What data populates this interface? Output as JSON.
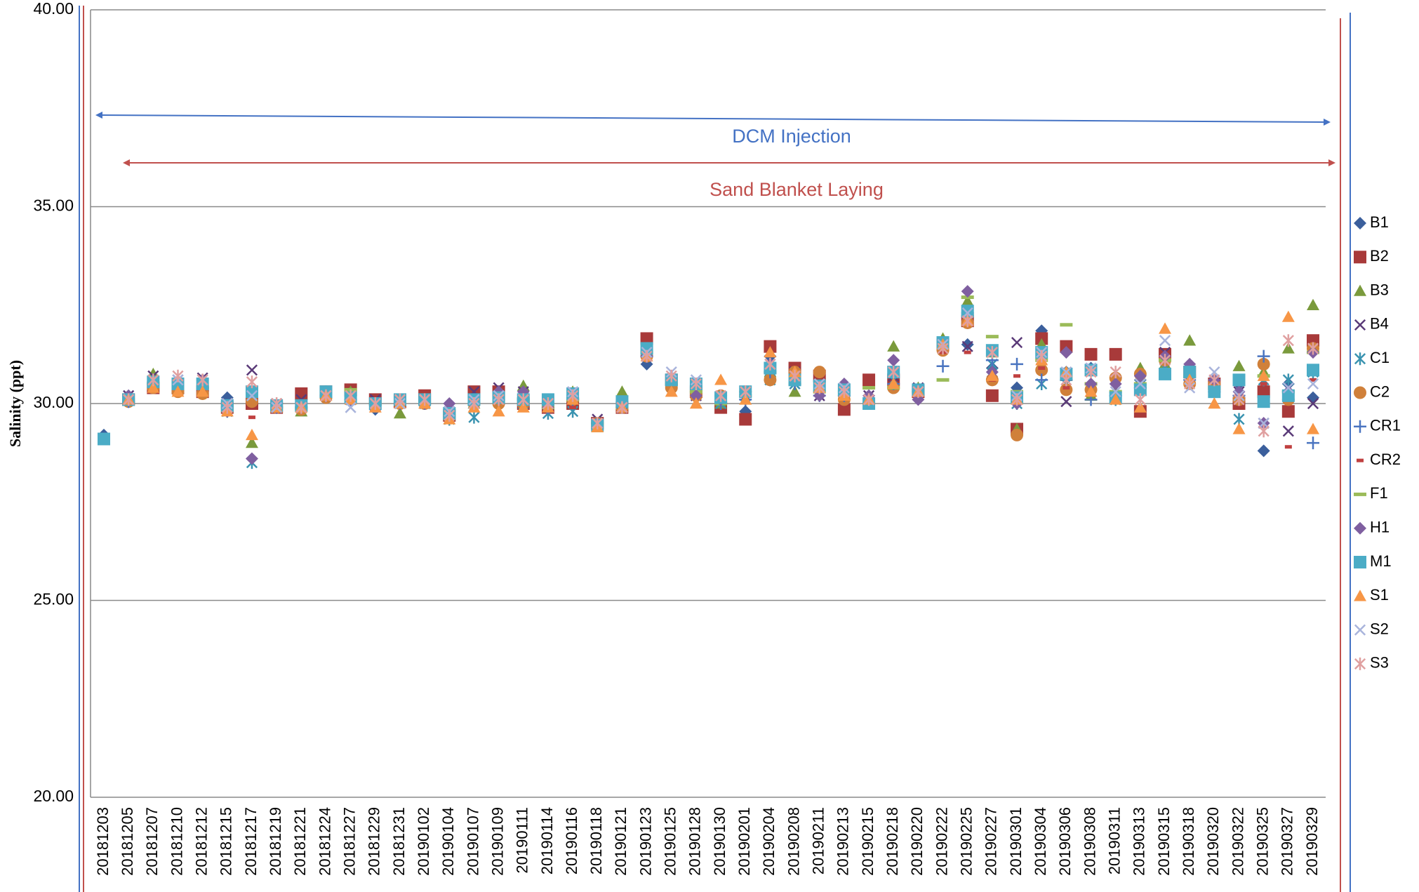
{
  "chart_data": {
    "type": "scatter",
    "y_label": "Salinity (ppt)",
    "ylim": [
      20,
      40
    ],
    "yticks": [
      {
        "value": 20,
        "label": "20.00"
      },
      {
        "value": 25,
        "label": "25.00"
      },
      {
        "value": 30,
        "label": "30.00"
      },
      {
        "value": 35,
        "label": "35.00"
      },
      {
        "value": 40,
        "label": "40.00"
      }
    ],
    "grid": true,
    "legend": "right",
    "annotations": [
      "DCM Injection",
      "Sand Blanket Laying"
    ],
    "categories": [
      "20181203",
      "20181205",
      "20181207",
      "20181210",
      "20181212",
      "20181215",
      "20181217",
      "20181219",
      "20181221",
      "20181224",
      "20181227",
      "20181229",
      "20181231",
      "20190102",
      "20190104",
      "20190107",
      "20190109",
      "20190111",
      "20190114",
      "20190116",
      "20190118",
      "20190121",
      "20190123",
      "20190125",
      "20190128",
      "20190130",
      "20190201",
      "20190204",
      "20190208",
      "20190211",
      "20190213",
      "20190215",
      "20190218",
      "20190220",
      "20190222",
      "20190225",
      "20190227",
      "20190301",
      "20190304",
      "20190306",
      "20190308",
      "20190311",
      "20190313",
      "20190315",
      "20190318",
      "20190320",
      "20190322",
      "20190325",
      "20190327",
      "20190329"
    ],
    "series": [
      {
        "name": "B1",
        "color": "#3b5f9c",
        "marker": "diamond",
        "values": [
          29.2,
          30.1,
          30.5,
          30.5,
          30.6,
          30.15,
          30.3,
          29.9,
          29.9,
          30.3,
          30.2,
          29.85,
          30.0,
          30.05,
          29.8,
          30.1,
          30.2,
          30.2,
          29.9,
          30.2,
          29.5,
          29.9,
          31.0,
          30.6,
          30.4,
          29.9,
          29.8,
          31.2,
          30.7,
          30.3,
          30.3,
          30.1,
          30.7,
          30.3,
          31.6,
          31.5,
          30.9,
          30.4,
          31.85,
          30.8,
          30.9,
          30.2,
          30.6,
          31.1,
          30.9,
          30.6,
          30.5,
          28.8,
          30.5,
          30.15
        ]
      },
      {
        "name": "B2",
        "color": "#a83a3a",
        "marker": "square",
        "values": [
          null,
          30.1,
          30.4,
          30.4,
          30.3,
          29.9,
          30.0,
          29.9,
          30.25,
          30.3,
          30.35,
          30.1,
          30.05,
          30.2,
          29.7,
          30.3,
          30.3,
          30.0,
          29.9,
          30.0,
          29.5,
          29.9,
          31.65,
          30.6,
          30.3,
          29.9,
          29.6,
          31.45,
          30.9,
          30.7,
          29.85,
          30.6,
          30.6,
          30.3,
          31.5,
          32.1,
          30.2,
          29.35,
          31.65,
          31.45,
          31.25,
          31.25,
          29.8,
          31.25,
          30.8,
          30.5,
          30.0,
          30.3,
          29.8,
          31.6
        ]
      },
      {
        "name": "B3",
        "color": "#7a9a3c",
        "marker": "triangle",
        "values": [
          null,
          30.1,
          30.75,
          30.4,
          30.5,
          29.9,
          29.0,
          29.9,
          29.8,
          30.2,
          30.3,
          30.0,
          29.75,
          30.1,
          29.7,
          30.0,
          30.2,
          30.45,
          30.0,
          30.3,
          29.4,
          30.3,
          31.3,
          30.6,
          30.4,
          30.0,
          30.3,
          30.8,
          30.3,
          30.4,
          30.3,
          30.1,
          31.45,
          30.4,
          31.65,
          32.6,
          31.3,
          29.35,
          31.5,
          30.7,
          30.2,
          30.3,
          30.9,
          31.0,
          31.6,
          30.4,
          30.95,
          30.8,
          31.4,
          32.5
        ]
      },
      {
        "name": "B4",
        "color": "#5a3a78",
        "marker": "x",
        "values": [
          null,
          30.2,
          30.7,
          30.6,
          30.65,
          29.9,
          30.85,
          30.0,
          30.1,
          30.2,
          30.1,
          30.1,
          30.1,
          30.0,
          29.8,
          30.3,
          30.4,
          30.3,
          29.9,
          30.2,
          29.6,
          29.9,
          31.2,
          30.5,
          30.2,
          30.1,
          30.3,
          31.0,
          30.8,
          30.2,
          30.3,
          30.2,
          30.7,
          30.4,
          31.5,
          31.45,
          30.8,
          31.55,
          30.9,
          30.05,
          30.3,
          30.6,
          30.7,
          31.3,
          30.9,
          30.5,
          30.3,
          29.5,
          29.3,
          30.0
        ]
      },
      {
        "name": "C1",
        "color": "#3a93b0",
        "marker": "asterisk",
        "values": [
          null,
          30.1,
          30.6,
          30.5,
          30.5,
          29.8,
          28.5,
          29.9,
          29.9,
          30.3,
          30.1,
          30.0,
          30.0,
          30.0,
          29.6,
          29.65,
          30.1,
          30.0,
          29.75,
          29.8,
          29.5,
          29.9,
          31.2,
          30.5,
          30.3,
          30.0,
          30.2,
          30.6,
          30.5,
          30.3,
          30.2,
          30.0,
          30.6,
          30.3,
          31.4,
          32.2,
          31.0,
          30.0,
          30.5,
          30.5,
          30.4,
          30.1,
          30.7,
          30.9,
          30.7,
          30.4,
          29.6,
          30.6,
          30.6,
          30.8
        ]
      },
      {
        "name": "C2",
        "color": "#d0803a",
        "marker": "circle",
        "values": [
          null,
          30.05,
          30.4,
          30.3,
          30.25,
          29.9,
          30.05,
          29.9,
          29.85,
          30.15,
          30.2,
          30.0,
          30.0,
          30.0,
          29.7,
          30.0,
          30.0,
          30.0,
          30.0,
          30.1,
          29.5,
          29.9,
          31.2,
          30.4,
          30.2,
          30.2,
          30.3,
          30.6,
          30.8,
          30.8,
          30.1,
          30.0,
          30.4,
          30.35,
          31.35,
          32.05,
          30.6,
          29.2,
          30.85,
          30.35,
          30.35,
          30.65,
          30.75,
          31.1,
          30.5,
          30.5,
          30.1,
          31.0,
          30.1,
          31.4
        ]
      },
      {
        "name": "CR1",
        "color": "#4a74c0",
        "marker": "plus",
        "values": [
          null,
          30.05,
          30.5,
          30.4,
          30.4,
          29.9,
          30.3,
          29.9,
          29.9,
          30.2,
          30.1,
          30.0,
          30.0,
          30.0,
          29.8,
          30.0,
          30.1,
          30.1,
          29.9,
          30.1,
          29.5,
          29.9,
          31.2,
          30.5,
          30.3,
          30.0,
          30.1,
          30.8,
          30.5,
          30.2,
          30.2,
          30.0,
          30.5,
          30.3,
          30.95,
          32.3,
          31.1,
          31.0,
          30.6,
          30.6,
          30.1,
          30.2,
          30.4,
          31.1,
          30.6,
          30.3,
          30.2,
          31.2,
          30.3,
          29.0
        ]
      },
      {
        "name": "CR2",
        "color": "#c04040",
        "marker": "dash-short",
        "values": [
          null,
          30.05,
          30.4,
          30.4,
          30.3,
          29.8,
          29.65,
          29.9,
          29.9,
          30.2,
          30.1,
          30.0,
          30.0,
          30.0,
          29.7,
          30.0,
          30.1,
          30.1,
          29.9,
          29.9,
          29.5,
          29.9,
          31.3,
          30.5,
          30.3,
          30.0,
          30.1,
          30.8,
          30.5,
          30.3,
          30.2,
          30.0,
          30.4,
          30.3,
          31.3,
          31.3,
          30.6,
          30.7,
          30.9,
          30.4,
          30.5,
          30.2,
          30.4,
          31.1,
          30.6,
          30.2,
          30.3,
          30.5,
          28.9,
          30.6
        ]
      },
      {
        "name": "F1",
        "color": "#9bbb59",
        "marker": "dash",
        "values": [
          null,
          30.1,
          30.5,
          30.4,
          30.4,
          29.9,
          30.3,
          29.9,
          29.9,
          30.2,
          30.35,
          30.0,
          30.0,
          30.0,
          29.7,
          30.0,
          30.1,
          30.1,
          29.9,
          30.1,
          29.5,
          29.9,
          31.3,
          30.5,
          30.3,
          30.0,
          30.2,
          30.8,
          30.5,
          30.3,
          30.3,
          30.4,
          30.4,
          30.3,
          30.6,
          32.7,
          31.7,
          30.3,
          31.1,
          32.0,
          30.5,
          30.3,
          30.5,
          31.1,
          30.7,
          30.4,
          30.6,
          30.7,
          30.3,
          31.3
        ]
      },
      {
        "name": "H1",
        "color": "#7f5fa0",
        "marker": "diamond",
        "values": [
          null,
          30.2,
          30.5,
          30.5,
          30.6,
          29.8,
          28.6,
          29.9,
          29.9,
          30.2,
          30.1,
          30.0,
          30.0,
          30.0,
          30.0,
          30.0,
          30.3,
          30.3,
          29.9,
          30.2,
          29.5,
          29.9,
          31.2,
          30.6,
          30.2,
          30.1,
          30.3,
          31.0,
          30.7,
          30.2,
          30.5,
          30.2,
          31.1,
          30.1,
          31.5,
          32.85,
          30.8,
          30.0,
          31.2,
          31.3,
          30.5,
          30.5,
          30.7,
          31.2,
          31.0,
          30.6,
          30.3,
          29.5,
          30.3,
          31.3
        ]
      },
      {
        "name": "M1",
        "color": "#4bacc6",
        "marker": "square",
        "values": [
          29.1,
          30.1,
          30.55,
          30.5,
          30.5,
          29.95,
          30.3,
          29.95,
          29.95,
          30.3,
          30.15,
          30.0,
          30.1,
          30.1,
          29.75,
          30.1,
          30.15,
          30.1,
          30.1,
          30.25,
          29.45,
          30.05,
          31.4,
          30.6,
          30.5,
          30.15,
          30.3,
          30.9,
          30.6,
          30.45,
          30.35,
          30.0,
          30.8,
          30.35,
          31.55,
          32.35,
          31.35,
          30.15,
          31.3,
          30.75,
          30.85,
          30.15,
          30.35,
          30.75,
          30.8,
          30.3,
          30.6,
          30.05,
          30.2,
          30.85
        ]
      },
      {
        "name": "S1",
        "color": "#f79646",
        "marker": "triangle",
        "values": [
          null,
          30.1,
          30.4,
          30.3,
          30.3,
          29.8,
          29.2,
          29.9,
          29.9,
          30.2,
          30.1,
          29.9,
          30.0,
          30.0,
          29.6,
          29.9,
          29.8,
          29.9,
          29.9,
          30.1,
          29.4,
          29.9,
          31.2,
          30.3,
          30.0,
          30.6,
          30.1,
          31.3,
          30.8,
          30.4,
          30.2,
          30.1,
          30.5,
          30.3,
          31.5,
          32.1,
          30.7,
          30.1,
          31.1,
          30.8,
          30.3,
          30.1,
          29.9,
          31.9,
          30.6,
          30.0,
          29.35,
          30.7,
          32.2,
          29.35
        ]
      },
      {
        "name": "S2",
        "color": "#a9b4dc",
        "marker": "x",
        "values": [
          null,
          30.1,
          30.6,
          30.6,
          30.6,
          30.0,
          30.2,
          29.9,
          29.9,
          30.2,
          29.9,
          30.0,
          30.0,
          30.1,
          29.8,
          30.1,
          30.2,
          30.1,
          30.0,
          30.3,
          29.5,
          29.9,
          31.3,
          30.8,
          30.6,
          30.2,
          30.3,
          31.0,
          30.7,
          30.5,
          30.4,
          30.1,
          30.8,
          30.3,
          31.5,
          32.3,
          31.3,
          30.2,
          31.3,
          30.8,
          30.9,
          30.3,
          30.5,
          31.6,
          30.4,
          30.8,
          30.2,
          29.5,
          30.4,
          30.5
        ]
      },
      {
        "name": "S3",
        "color": "#e0a0a0",
        "marker": "asterisk",
        "values": [
          null,
          30.1,
          30.6,
          30.7,
          30.6,
          29.9,
          30.55,
          30.0,
          29.9,
          30.2,
          30.2,
          30.0,
          30.1,
          30.1,
          29.7,
          30.0,
          30.1,
          30.1,
          30.0,
          30.2,
          29.5,
          29.9,
          31.2,
          30.7,
          30.5,
          30.2,
          30.3,
          31.0,
          30.7,
          30.4,
          30.3,
          30.1,
          30.8,
          30.3,
          31.4,
          32.1,
          31.3,
          30.1,
          31.2,
          30.6,
          30.8,
          30.8,
          30.1,
          31.1,
          30.5,
          30.6,
          30.1,
          29.3,
          31.6,
          31.4
        ]
      }
    ]
  }
}
